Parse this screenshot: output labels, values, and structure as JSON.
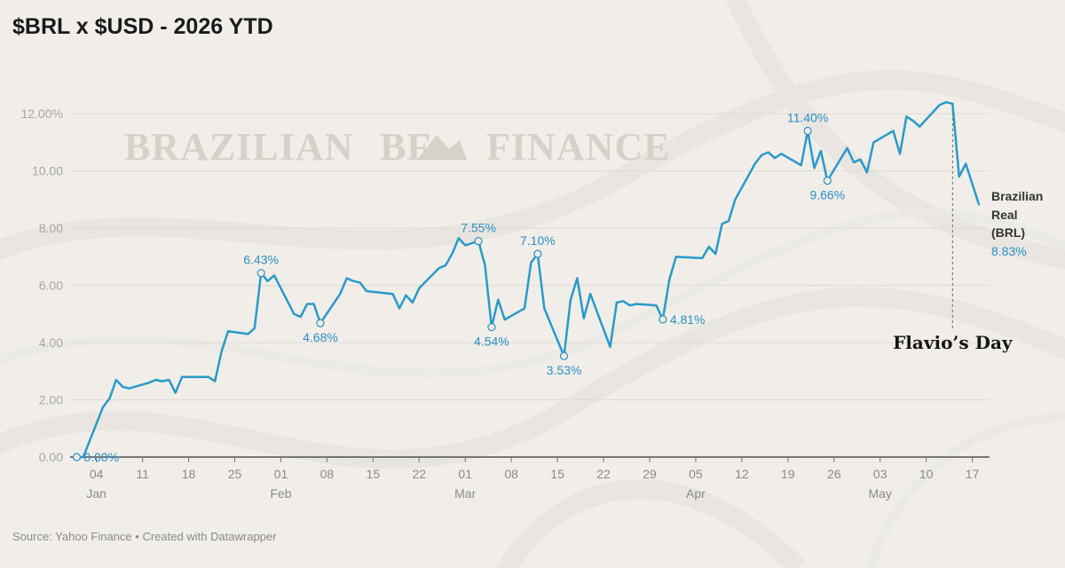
{
  "header": {
    "title": "$BRL x $USD - 2026 YTD"
  },
  "footer": {
    "source": "Source: Yahoo Finance • Created with Datawrapper"
  },
  "watermark": {
    "left": "BRAZILIAN",
    "logo": "BF",
    "right": "FINANCE"
  },
  "colors": {
    "line": "#2b9ac9",
    "annotation": "#2b8fc4",
    "background": "#f1eeea",
    "grid": "#dedad5"
  },
  "chart_data": {
    "type": "line",
    "title": "$BRL x $USD - 2026 YTD",
    "xlabel": "",
    "ylabel": "",
    "ylim": [
      0,
      12.5
    ],
    "yticks": [
      0,
      2,
      4,
      6,
      8,
      10,
      12
    ],
    "ytick_labels": [
      "0.00",
      "2.00",
      "4.00",
      "6.00",
      "8.00",
      "10.00",
      "12.00%"
    ],
    "x_type": "date",
    "xlim": [
      "2025-12-31",
      "2026-05-18"
    ],
    "xticks": [
      {
        "date": "2026-01-04",
        "label": "04",
        "month": "Jan"
      },
      {
        "date": "2026-01-11",
        "label": "11"
      },
      {
        "date": "2026-01-18",
        "label": "18"
      },
      {
        "date": "2026-01-25",
        "label": "25"
      },
      {
        "date": "2026-02-01",
        "label": "01",
        "month": "Feb"
      },
      {
        "date": "2026-02-08",
        "label": "08"
      },
      {
        "date": "2026-02-15",
        "label": "15"
      },
      {
        "date": "2026-02-22",
        "label": "22"
      },
      {
        "date": "2026-03-01",
        "label": "01",
        "month": "Mar"
      },
      {
        "date": "2026-03-08",
        "label": "08"
      },
      {
        "date": "2026-03-15",
        "label": "15"
      },
      {
        "date": "2026-03-22",
        "label": "22"
      },
      {
        "date": "2026-03-29",
        "label": "29"
      },
      {
        "date": "2026-04-05",
        "label": "05",
        "month": "Apr"
      },
      {
        "date": "2026-04-12",
        "label": "12"
      },
      {
        "date": "2026-04-19",
        "label": "19"
      },
      {
        "date": "2026-04-26",
        "label": "26"
      },
      {
        "date": "2026-05-03",
        "label": "03",
        "month": "May"
      },
      {
        "date": "2026-05-10",
        "label": "10"
      },
      {
        "date": "2026-05-17",
        "label": "17"
      }
    ],
    "grid": true,
    "series": [
      {
        "name": "Brazilian Real (BRL)",
        "end_label": "8.83%",
        "points": [
          [
            "2026-01-01",
            0.0
          ],
          [
            "2026-01-02",
            0.0
          ],
          [
            "2026-01-05",
            1.75
          ],
          [
            "2026-01-06",
            2.05
          ],
          [
            "2026-01-07",
            2.7
          ],
          [
            "2026-01-08",
            2.45
          ],
          [
            "2026-01-09",
            2.4
          ],
          [
            "2026-01-12",
            2.6
          ],
          [
            "2026-01-13",
            2.7
          ],
          [
            "2026-01-14",
            2.65
          ],
          [
            "2026-01-15",
            2.7
          ],
          [
            "2026-01-16",
            2.25
          ],
          [
            "2026-01-17",
            2.8
          ],
          [
            "2026-01-21",
            2.8
          ],
          [
            "2026-01-22",
            2.65
          ],
          [
            "2026-01-23",
            3.7
          ],
          [
            "2026-01-24",
            4.4
          ],
          [
            "2026-01-27",
            4.3
          ],
          [
            "2026-01-28",
            4.5
          ],
          [
            "2026-01-29",
            6.43
          ],
          [
            "2026-01-30",
            6.15
          ],
          [
            "2026-01-31",
            6.35
          ],
          [
            "2026-02-03",
            5.0
          ],
          [
            "2026-02-04",
            4.9
          ],
          [
            "2026-02-05",
            5.35
          ],
          [
            "2026-02-06",
            5.35
          ],
          [
            "2026-02-07",
            4.68
          ],
          [
            "2026-02-10",
            5.7
          ],
          [
            "2026-02-11",
            6.25
          ],
          [
            "2026-02-12",
            6.15
          ],
          [
            "2026-02-13",
            6.1
          ],
          [
            "2026-02-14",
            5.8
          ],
          [
            "2026-02-18",
            5.7
          ],
          [
            "2026-02-19",
            5.2
          ],
          [
            "2026-02-20",
            5.65
          ],
          [
            "2026-02-21",
            5.4
          ],
          [
            "2026-02-22",
            5.9
          ],
          [
            "2026-02-25",
            6.6
          ],
          [
            "2026-02-26",
            6.7
          ],
          [
            "2026-02-27",
            7.1
          ],
          [
            "2026-02-28",
            7.65
          ],
          [
            "2026-03-01",
            7.4
          ],
          [
            "2026-03-03",
            7.55
          ],
          [
            "2026-03-04",
            6.7
          ],
          [
            "2026-03-05",
            4.54
          ],
          [
            "2026-03-06",
            5.5
          ],
          [
            "2026-03-07",
            4.8
          ],
          [
            "2026-03-10",
            5.2
          ],
          [
            "2026-03-11",
            6.8
          ],
          [
            "2026-03-12",
            7.1
          ],
          [
            "2026-03-13",
            5.2
          ],
          [
            "2026-03-16",
            3.53
          ],
          [
            "2026-03-17",
            5.5
          ],
          [
            "2026-03-18",
            6.25
          ],
          [
            "2026-03-19",
            4.85
          ],
          [
            "2026-03-20",
            5.7
          ],
          [
            "2026-03-23",
            3.85
          ],
          [
            "2026-03-24",
            5.4
          ],
          [
            "2026-03-25",
            5.45
          ],
          [
            "2026-03-26",
            5.3
          ],
          [
            "2026-03-27",
            5.35
          ],
          [
            "2026-03-30",
            5.3
          ],
          [
            "2026-03-31",
            4.81
          ],
          [
            "2026-04-01",
            6.2
          ],
          [
            "2026-04-02",
            7.0
          ],
          [
            "2026-04-06",
            6.95
          ],
          [
            "2026-04-07",
            7.35
          ],
          [
            "2026-04-08",
            7.1
          ],
          [
            "2026-04-09",
            8.15
          ],
          [
            "2026-04-10",
            8.25
          ],
          [
            "2026-04-11",
            9.0
          ],
          [
            "2026-04-14",
            10.25
          ],
          [
            "2026-04-15",
            10.55
          ],
          [
            "2026-04-16",
            10.65
          ],
          [
            "2026-04-17",
            10.45
          ],
          [
            "2026-04-18",
            10.6
          ],
          [
            "2026-04-21",
            10.2
          ],
          [
            "2026-04-22",
            11.4
          ],
          [
            "2026-04-23",
            10.1
          ],
          [
            "2026-04-24",
            10.7
          ],
          [
            "2026-04-25",
            9.66
          ],
          [
            "2026-04-28",
            10.8
          ],
          [
            "2026-04-29",
            10.3
          ],
          [
            "2026-04-30",
            10.4
          ],
          [
            "2026-05-01",
            9.95
          ],
          [
            "2026-05-02",
            11.0
          ],
          [
            "2026-05-05",
            11.4
          ],
          [
            "2026-05-06",
            10.6
          ],
          [
            "2026-05-07",
            11.9
          ],
          [
            "2026-05-08",
            11.75
          ],
          [
            "2026-05-09",
            11.55
          ],
          [
            "2026-05-12",
            12.3
          ],
          [
            "2026-05-13",
            12.4
          ],
          [
            "2026-05-14",
            12.35
          ],
          [
            "2026-05-15",
            9.8
          ],
          [
            "2026-05-16",
            10.25
          ],
          [
            "2026-05-18",
            8.83
          ]
        ]
      }
    ],
    "annotations": [
      {
        "date": "2026-01-01",
        "value": 0.0,
        "label": "0.00%",
        "position": "right"
      },
      {
        "date": "2026-01-29",
        "value": 6.43,
        "label": "6.43%",
        "position": "above"
      },
      {
        "date": "2026-02-07",
        "value": 4.68,
        "label": "4.68%",
        "position": "below"
      },
      {
        "date": "2026-03-03",
        "value": 7.55,
        "label": "7.55%",
        "position": "above"
      },
      {
        "date": "2026-03-05",
        "value": 4.54,
        "label": "4.54%",
        "position": "below"
      },
      {
        "date": "2026-03-12",
        "value": 7.1,
        "label": "7.10%",
        "position": "above"
      },
      {
        "date": "2026-03-16",
        "value": 3.53,
        "label": "3.53%",
        "position": "below"
      },
      {
        "date": "2026-03-31",
        "value": 4.81,
        "label": "4.81%",
        "position": "right"
      },
      {
        "date": "2026-04-22",
        "value": 11.4,
        "label": "11.40%",
        "position": "above"
      },
      {
        "date": "2026-04-25",
        "value": 9.66,
        "label": "9.66%",
        "position": "below"
      }
    ],
    "event_marker": {
      "date": "2026-05-14",
      "label": "Flavio’s Day"
    }
  }
}
